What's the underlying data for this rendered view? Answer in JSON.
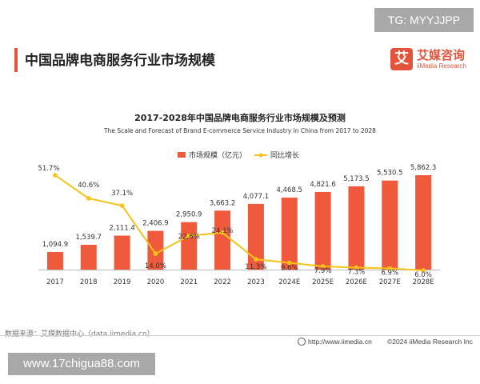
{
  "watermark_top": "TG: MYYJJPP",
  "watermark_bottom": "www.17chigua88.com",
  "header": {
    "title": "中国品牌电商服务行业市场规模"
  },
  "logo": {
    "mark": "艾",
    "name_cn": "艾媒咨询",
    "name_en": "iiMedia Research"
  },
  "footer": {
    "source": "数据来源：艾媒数据中心（data.iimedia.cn）",
    "url": "http://www.iimedia.cn",
    "copyright": "©2024  iiMedia Research  Inc"
  },
  "colors": {
    "bar": "#f05a3c",
    "line": "#f7c21a",
    "accent": "#e5533a"
  },
  "chart_data": {
    "type": "bar",
    "title": "2017-2028年中国品牌电商服务行业市场规模及预测",
    "subtitle": "The Scale and Forecast of Brand E-commerce Service Industry in China from 2017 to 2028",
    "legend_position": "top-center",
    "grid": false,
    "categories": [
      "2017",
      "2018",
      "2019",
      "2020",
      "2021",
      "2022",
      "2023",
      "2024E",
      "2025E",
      "2026E",
      "2027E",
      "2028E"
    ],
    "series": [
      {
        "name": "市场规模（亿元）",
        "type": "bar",
        "color": "#f05a3c",
        "values": [
          1094.9,
          1539.7,
          2111.4,
          2406.9,
          2950.9,
          3663.2,
          4077.1,
          4468.5,
          4821.6,
          5173.5,
          5530.5,
          5862.3
        ],
        "labels": [
          "1,094.9",
          "1,539.7",
          "2,111.4",
          "2,406.9",
          "2,950.9",
          "3,663.2",
          "4,077.1",
          "4,468.5",
          "4,821.6",
          "5,173.5",
          "5,530.5",
          "5,862.3"
        ]
      },
      {
        "name": "同比增长",
        "type": "line",
        "color": "#f7c21a",
        "values": [
          51.7,
          40.6,
          37.1,
          14.0,
          22.6,
          24.1,
          11.3,
          9.6,
          7.9,
          7.3,
          6.9,
          6.0
        ],
        "labels": [
          "51.7%",
          "40.6%",
          "37.1%",
          "14.0%",
          "22.6%",
          "24.1%",
          "11.3%",
          "9.6%",
          "7.9%",
          "7.3%",
          "6.9%",
          "6.0%"
        ]
      }
    ]
  }
}
